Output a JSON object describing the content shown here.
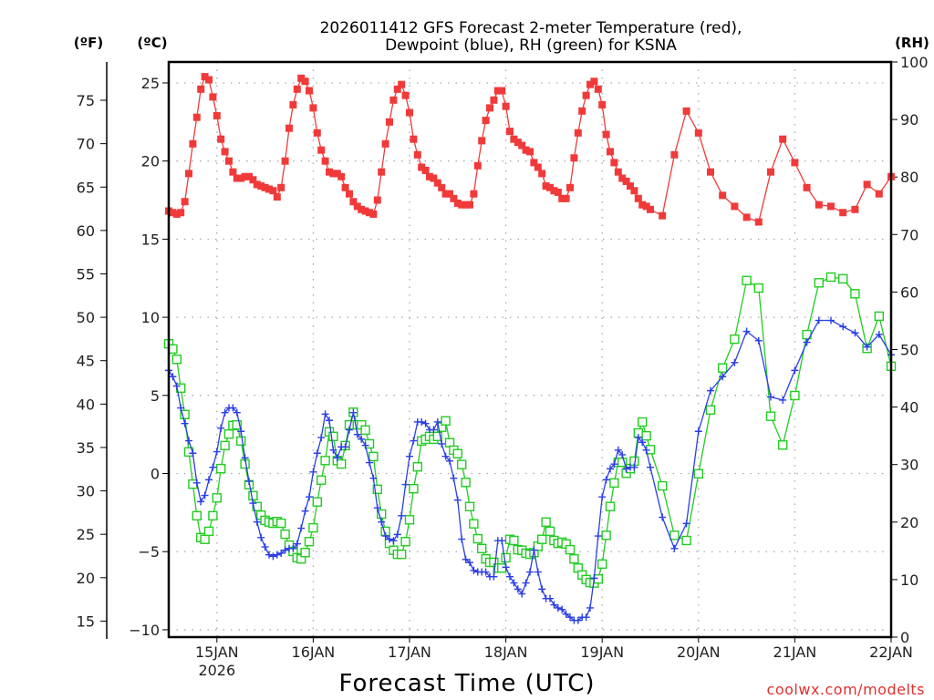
{
  "chart_data": {
    "type": "line",
    "title_line1": "2026011412 GFS Forecast 2-meter Temperature (red),",
    "title_line2": "Dewpoint (blue), RH (green) for KSNA",
    "xlabel": "Forecast Time (UTC)",
    "credit": "coolwx.com/modelts",
    "left_outer_axis_unit": "(ºF)",
    "left_axis_unit": "(ºC)",
    "right_axis_unit": "(RH)",
    "start_time": "2026011412",
    "x_range_hours": [
      0,
      180
    ],
    "time_steps": [
      {
        "from": 0,
        "to": 120,
        "step": 1
      },
      {
        "from": 120,
        "to": 180,
        "step": 3
      }
    ],
    "x_ticks": [
      {
        "hour": 12,
        "label": "15JAN",
        "sublabel": "2026"
      },
      {
        "hour": 36,
        "label": "16JAN",
        "sublabel": ""
      },
      {
        "hour": 60,
        "label": "17JAN",
        "sublabel": ""
      },
      {
        "hour": 84,
        "label": "18JAN",
        "sublabel": ""
      },
      {
        "hour": 108,
        "label": "19JAN",
        "sublabel": ""
      },
      {
        "hour": 132,
        "label": "20JAN",
        "sublabel": ""
      },
      {
        "hour": 156,
        "label": "21JAN",
        "sublabel": ""
      },
      {
        "hour": 180,
        "label": "22JAN",
        "sublabel": ""
      }
    ],
    "y_celsius": {
      "range": [
        -10.47,
        26.34
      ],
      "ticks": [
        -10,
        -5,
        0,
        5,
        10,
        15,
        20,
        25
      ],
      "tick_labels": [
        "−10",
        "−5",
        "0",
        "5",
        "10",
        "15",
        "20",
        "25"
      ]
    },
    "y_fahrenheit": {
      "ticks": [
        15,
        20,
        25,
        30,
        35,
        40,
        45,
        50,
        55,
        60,
        65,
        70,
        75
      ],
      "tick_labels": [
        "15",
        "20",
        "25",
        "30",
        "35",
        "40",
        "45",
        "50",
        "55",
        "60",
        "65",
        "70",
        "75"
      ]
    },
    "y_rh": {
      "range": [
        0,
        100
      ],
      "ticks": [
        0,
        10,
        20,
        30,
        40,
        50,
        60,
        70,
        80,
        90,
        100
      ],
      "tick_labels": [
        "0",
        "10",
        "20",
        "30",
        "40",
        "50",
        "60",
        "70",
        "80",
        "90",
        "100"
      ]
    },
    "grid": true,
    "series": [
      {
        "name": "Temperature (°C)",
        "axis": "celsius",
        "color": "#f03a3a",
        "marker": "filled-square",
        "values": [
          16.8,
          16.7,
          16.6,
          16.7,
          17.4,
          19.2,
          21.1,
          22.8,
          24.6,
          25.4,
          25.2,
          24.1,
          22.9,
          21.4,
          20.6,
          20.0,
          19.3,
          18.9,
          18.9,
          19.0,
          19.0,
          18.8,
          18.5,
          18.4,
          18.3,
          18.2,
          18.1,
          17.7,
          18.3,
          20.0,
          22.1,
          23.6,
          24.6,
          25.3,
          25.1,
          24.5,
          23.4,
          21.8,
          20.7,
          20.0,
          19.3,
          19.2,
          19.2,
          19.0,
          18.3,
          17.9,
          17.4,
          17.1,
          16.9,
          16.8,
          16.7,
          16.6,
          17.5,
          19.3,
          21.1,
          22.5,
          23.9,
          24.6,
          24.9,
          24.2,
          23.1,
          21.4,
          20.4,
          19.6,
          19.4,
          19.0,
          18.9,
          18.6,
          18.3,
          17.9,
          17.9,
          17.6,
          17.3,
          17.2,
          17.2,
          17.2,
          17.9,
          19.7,
          21.3,
          22.6,
          23.4,
          23.9,
          24.5,
          24.5,
          23.5,
          21.9,
          21.4,
          21.2,
          21.0,
          20.7,
          20.6,
          19.9,
          19.6,
          19.2,
          18.4,
          18.3,
          18.1,
          18.0,
          17.6,
          17.6,
          18.3,
          20.2,
          21.8,
          23.2,
          24.2,
          24.9,
          25.1,
          24.6,
          23.6,
          21.7,
          20.6,
          19.9,
          19.3,
          18.9,
          18.7,
          18.4,
          18.1,
          17.6,
          17.2,
          17.1,
          16.9,
          16.5,
          20.4,
          23.2,
          21.8,
          19.3,
          17.8,
          17.1,
          16.4,
          16.1,
          19.3,
          21.4,
          19.9,
          18.3,
          17.2,
          17.1,
          16.7,
          16.9,
          18.5,
          17.9,
          19.0
        ]
      },
      {
        "name": "Dewpoint (°C)",
        "axis": "celsius",
        "color": "#2a3ee6",
        "marker": "plus",
        "values": [
          6.6,
          6.2,
          5.6,
          4.2,
          3.2,
          2.1,
          1.3,
          -0.6,
          -1.8,
          -1.4,
          -0.4,
          0.4,
          1.4,
          2.9,
          3.9,
          4.2,
          4.2,
          3.9,
          2.7,
          1.0,
          -0.5,
          -1.9,
          -3.1,
          -4.1,
          -4.7,
          -5.2,
          -5.3,
          -5.2,
          -5.1,
          -4.9,
          -4.8,
          -4.8,
          -4.5,
          -3.5,
          -2.4,
          -1.5,
          0.1,
          1.3,
          2.3,
          3.8,
          3.4,
          1.5,
          1.0,
          1.7,
          1.7,
          2.8,
          3.9,
          2.5,
          2.2,
          1.8,
          0.7,
          -0.3,
          -2.2,
          -3.1,
          -4.0,
          -4.2,
          -4.3,
          -3.9,
          -2.7,
          -0.7,
          1.1,
          2.1,
          3.3,
          3.3,
          3.2,
          2.8,
          2.8,
          3.3,
          1.9,
          1.1,
          0.8,
          -0.3,
          -1.7,
          -4.2,
          -5.5,
          -5.7,
          -6.2,
          -6.3,
          -6.3,
          -6.3,
          -6.6,
          -6.6,
          -4.3,
          -4.3,
          -6.0,
          -6.6,
          -7.0,
          -7.4,
          -7.7,
          -7.0,
          -6.3,
          -4.9,
          -6.3,
          -7.4,
          -8.0,
          -8.0,
          -8.4,
          -8.6,
          -8.7,
          -9.0,
          -9.2,
          -9.4,
          -9.4,
          -9.2,
          -9.2,
          -8.6,
          -6.7,
          -4.0,
          -1.5,
          -0.4,
          0.3,
          0.6,
          1.5,
          1.2,
          0.3,
          0.4,
          0.4,
          2.3,
          2.0,
          1.5,
          0.4,
          -2.8,
          -4.8,
          -3.2,
          2.7,
          5.3,
          6.2,
          7.1,
          9.1,
          8.5,
          4.9,
          4.7,
          6.6,
          8.4,
          9.8,
          9.8,
          9.4,
          9.0,
          8.1,
          8.9,
          7.6
        ]
      },
      {
        "name": "RH (%)",
        "axis": "rh",
        "color": "#22cc22",
        "marker": "open-square",
        "values": [
          51.0,
          50.1,
          48.3,
          43.3,
          38.7,
          32.2,
          26.6,
          21.1,
          17.3,
          17.0,
          18.4,
          21.1,
          24.2,
          29.3,
          33.3,
          35.3,
          36.8,
          36.9,
          34.1,
          30.1,
          26.5,
          24.6,
          22.7,
          21.2,
          20.3,
          20.0,
          19.8,
          20.1,
          19.8,
          17.9,
          16.0,
          14.9,
          13.8,
          13.6,
          14.7,
          16.6,
          19.0,
          23.5,
          27.3,
          30.7,
          35.7,
          34.9,
          30.7,
          30.1,
          33.3,
          36.9,
          39.1,
          36.9,
          36.9,
          36.0,
          33.6,
          31.4,
          25.7,
          21.4,
          18.4,
          16.3,
          15.1,
          14.4,
          14.4,
          16.6,
          20.4,
          25.8,
          29.6,
          34.1,
          34.4,
          34.9,
          34.4,
          34.9,
          36.5,
          37.6,
          33.8,
          32.5,
          31.9,
          30.0,
          26.9,
          22.7,
          19.7,
          17.1,
          15.4,
          13.6,
          13.0,
          13.0,
          12.0,
          12.0,
          13.8,
          17.0,
          16.8,
          15.2,
          15.1,
          14.6,
          14.4,
          14.7,
          15.8,
          17.0,
          20.0,
          18.4,
          16.8,
          16.3,
          16.5,
          16.2,
          15.2,
          13.6,
          12.0,
          10.8,
          10.0,
          9.5,
          9.4,
          10.1,
          12.7,
          17.7,
          22.7,
          26.8,
          30.4,
          30.4,
          28.5,
          29.3,
          30.6,
          35.5,
          37.4,
          35.0,
          32.6,
          26.3,
          17.7,
          16.8,
          28.4,
          39.5,
          46.8,
          51.8,
          62.0,
          60.7,
          38.4,
          33.4,
          42.0,
          52.6,
          61.6,
          62.6,
          62.3,
          59.7,
          50.2,
          55.8,
          47.1
        ]
      }
    ]
  }
}
